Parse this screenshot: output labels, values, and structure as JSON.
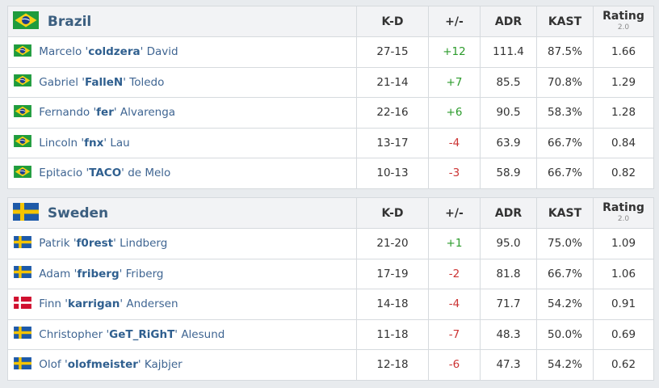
{
  "columns": {
    "kd": "K-D",
    "plusminus": "+/-",
    "adr": "ADR",
    "kast": "KAST",
    "rating": "Rating",
    "rating_sub": "2.0"
  },
  "colors": {
    "positive": "#2c9b2c",
    "negative": "#cc3333",
    "team_name": "#3c5f80",
    "player_link": "#3f6592"
  },
  "teams": [
    {
      "name": "Brazil",
      "flag": "brazil-flag-icon",
      "players": [
        {
          "first": "Marcelo",
          "nick": "coldzera",
          "last": "David",
          "flag": "brazil-flag-icon",
          "kd": "27-15",
          "pm": "+12",
          "adr": "111.4",
          "kast": "87.5%",
          "rating": "1.66"
        },
        {
          "first": "Gabriel",
          "nick": "FalleN",
          "last": "Toledo",
          "flag": "brazil-flag-icon",
          "kd": "21-14",
          "pm": "+7",
          "adr": "85.5",
          "kast": "70.8%",
          "rating": "1.29"
        },
        {
          "first": "Fernando",
          "nick": "fer",
          "last": "Alvarenga",
          "flag": "brazil-flag-icon",
          "kd": "22-16",
          "pm": "+6",
          "adr": "90.5",
          "kast": "58.3%",
          "rating": "1.28"
        },
        {
          "first": "Lincoln",
          "nick": "fnx",
          "last": "Lau",
          "flag": "brazil-flag-icon",
          "kd": "13-17",
          "pm": "-4",
          "adr": "63.9",
          "kast": "66.7%",
          "rating": "0.84"
        },
        {
          "first": "Epitacio",
          "nick": "TACO",
          "last": "de Melo",
          "flag": "brazil-flag-icon",
          "kd": "10-13",
          "pm": "-3",
          "adr": "58.9",
          "kast": "66.7%",
          "rating": "0.82"
        }
      ]
    },
    {
      "name": "Sweden",
      "flag": "sweden-flag-icon",
      "players": [
        {
          "first": "Patrik",
          "nick": "f0rest",
          "last": "Lindberg",
          "flag": "sweden-flag-icon",
          "kd": "21-20",
          "pm": "+1",
          "adr": "95.0",
          "kast": "75.0%",
          "rating": "1.09"
        },
        {
          "first": "Adam",
          "nick": "friberg",
          "last": "Friberg",
          "flag": "sweden-flag-icon",
          "kd": "17-19",
          "pm": "-2",
          "adr": "81.8",
          "kast": "66.7%",
          "rating": "1.06"
        },
        {
          "first": "Finn",
          "nick": "karrigan",
          "last": "Andersen",
          "flag": "denmark-flag-icon",
          "kd": "14-18",
          "pm": "-4",
          "adr": "71.7",
          "kast": "54.2%",
          "rating": "0.91"
        },
        {
          "first": "Christopher",
          "nick": "GeT_RiGhT",
          "last": "Alesund",
          "flag": "sweden-flag-icon",
          "kd": "11-18",
          "pm": "-7",
          "adr": "48.3",
          "kast": "50.0%",
          "rating": "0.69"
        },
        {
          "first": "Olof",
          "nick": "olofmeister",
          "last": "Kajbjer",
          "flag": "sweden-flag-icon",
          "kd": "12-18",
          "pm": "-6",
          "adr": "47.3",
          "kast": "54.2%",
          "rating": "0.62"
        }
      ]
    }
  ]
}
